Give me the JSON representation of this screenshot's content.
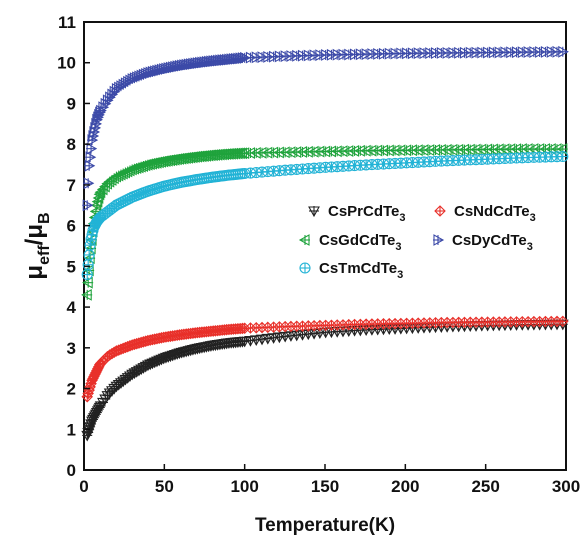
{
  "chart_data": {
    "type": "scatter",
    "title": "",
    "xlabel": "Temperature(K)",
    "ylabel": {
      "base": "μ",
      "sub1": "eff",
      "slash": "/",
      "base2": "μ",
      "sub2": "B"
    },
    "xlim": [
      0,
      300
    ],
    "ylim": [
      0,
      11
    ],
    "xticks": [
      0,
      50,
      100,
      150,
      200,
      250,
      300
    ],
    "yticks": [
      0,
      1,
      2,
      3,
      4,
      5,
      6,
      7,
      8,
      9,
      10,
      11
    ],
    "grid": false,
    "legend_placement": "center-right",
    "series": [
      {
        "name": "CsPrCdTe3",
        "name_base": "CsPrCdTe",
        "name_sub": "3",
        "color": "#222222",
        "marker": "triangle-down",
        "x": [
          2,
          5,
          10,
          15,
          20,
          30,
          40,
          50,
          60,
          70,
          80,
          90,
          100,
          125,
          150,
          175,
          200,
          225,
          250,
          275,
          300
        ],
        "y": [
          0.85,
          1.2,
          1.55,
          1.85,
          2.05,
          2.35,
          2.58,
          2.75,
          2.88,
          2.98,
          3.06,
          3.12,
          3.16,
          3.28,
          3.38,
          3.44,
          3.48,
          3.52,
          3.55,
          3.57,
          3.58
        ]
      },
      {
        "name": "CsNdCdTe3",
        "name_base": "CsNdCdTe",
        "name_sub": "3",
        "color": "#e8302a",
        "marker": "diamond",
        "x": [
          2,
          5,
          10,
          15,
          20,
          30,
          40,
          50,
          60,
          70,
          80,
          90,
          100,
          125,
          150,
          175,
          200,
          225,
          250,
          275,
          300
        ],
        "y": [
          1.8,
          2.2,
          2.6,
          2.8,
          2.92,
          3.07,
          3.18,
          3.26,
          3.32,
          3.37,
          3.41,
          3.45,
          3.48,
          3.52,
          3.55,
          3.58,
          3.6,
          3.62,
          3.63,
          3.64,
          3.65
        ]
      },
      {
        "name": "CsGdCdTe3",
        "name_base": "CsGdCdTe",
        "name_sub": "3",
        "color": "#1fa33c",
        "marker": "triangle-left",
        "x": [
          2,
          4,
          6,
          8,
          10,
          15,
          20,
          30,
          40,
          50,
          60,
          70,
          80,
          90,
          100,
          125,
          150,
          175,
          200,
          225,
          250,
          275,
          300
        ],
        "y": [
          4.3,
          5.3,
          6.0,
          6.5,
          6.8,
          7.05,
          7.2,
          7.38,
          7.5,
          7.58,
          7.64,
          7.69,
          7.73,
          7.76,
          7.78,
          7.8,
          7.82,
          7.84,
          7.85,
          7.86,
          7.87,
          7.88,
          7.88
        ]
      },
      {
        "name": "CsDyCdTe3",
        "name_base": "CsDyCdTe",
        "name_sub": "3",
        "color": "#3c4aa8",
        "marker": "triangle-right",
        "x": [
          2,
          3,
          5,
          8,
          10,
          15,
          20,
          30,
          40,
          50,
          60,
          70,
          80,
          90,
          100,
          125,
          150,
          175,
          200,
          225,
          250,
          275,
          300
        ],
        "y": [
          6.5,
          7.4,
          8.1,
          8.6,
          8.8,
          9.1,
          9.35,
          9.6,
          9.75,
          9.85,
          9.93,
          9.99,
          10.04,
          10.08,
          10.12,
          10.16,
          10.19,
          10.21,
          10.23,
          10.24,
          10.25,
          10.26,
          10.27
        ]
      },
      {
        "name": "CsTmCdTe3",
        "name_base": "CsTmCdTe",
        "name_sub": "3",
        "color": "#22b3d6",
        "marker": "circle-plus",
        "x": [
          2,
          4,
          6,
          8,
          10,
          15,
          20,
          30,
          40,
          50,
          60,
          70,
          80,
          90,
          100,
          125,
          150,
          175,
          200,
          225,
          250,
          275,
          300
        ],
        "y": [
          4.8,
          5.6,
          5.95,
          6.1,
          6.2,
          6.35,
          6.5,
          6.7,
          6.85,
          6.97,
          7.06,
          7.13,
          7.19,
          7.24,
          7.28,
          7.36,
          7.43,
          7.49,
          7.54,
          7.59,
          7.63,
          7.67,
          7.7
        ]
      }
    ]
  }
}
